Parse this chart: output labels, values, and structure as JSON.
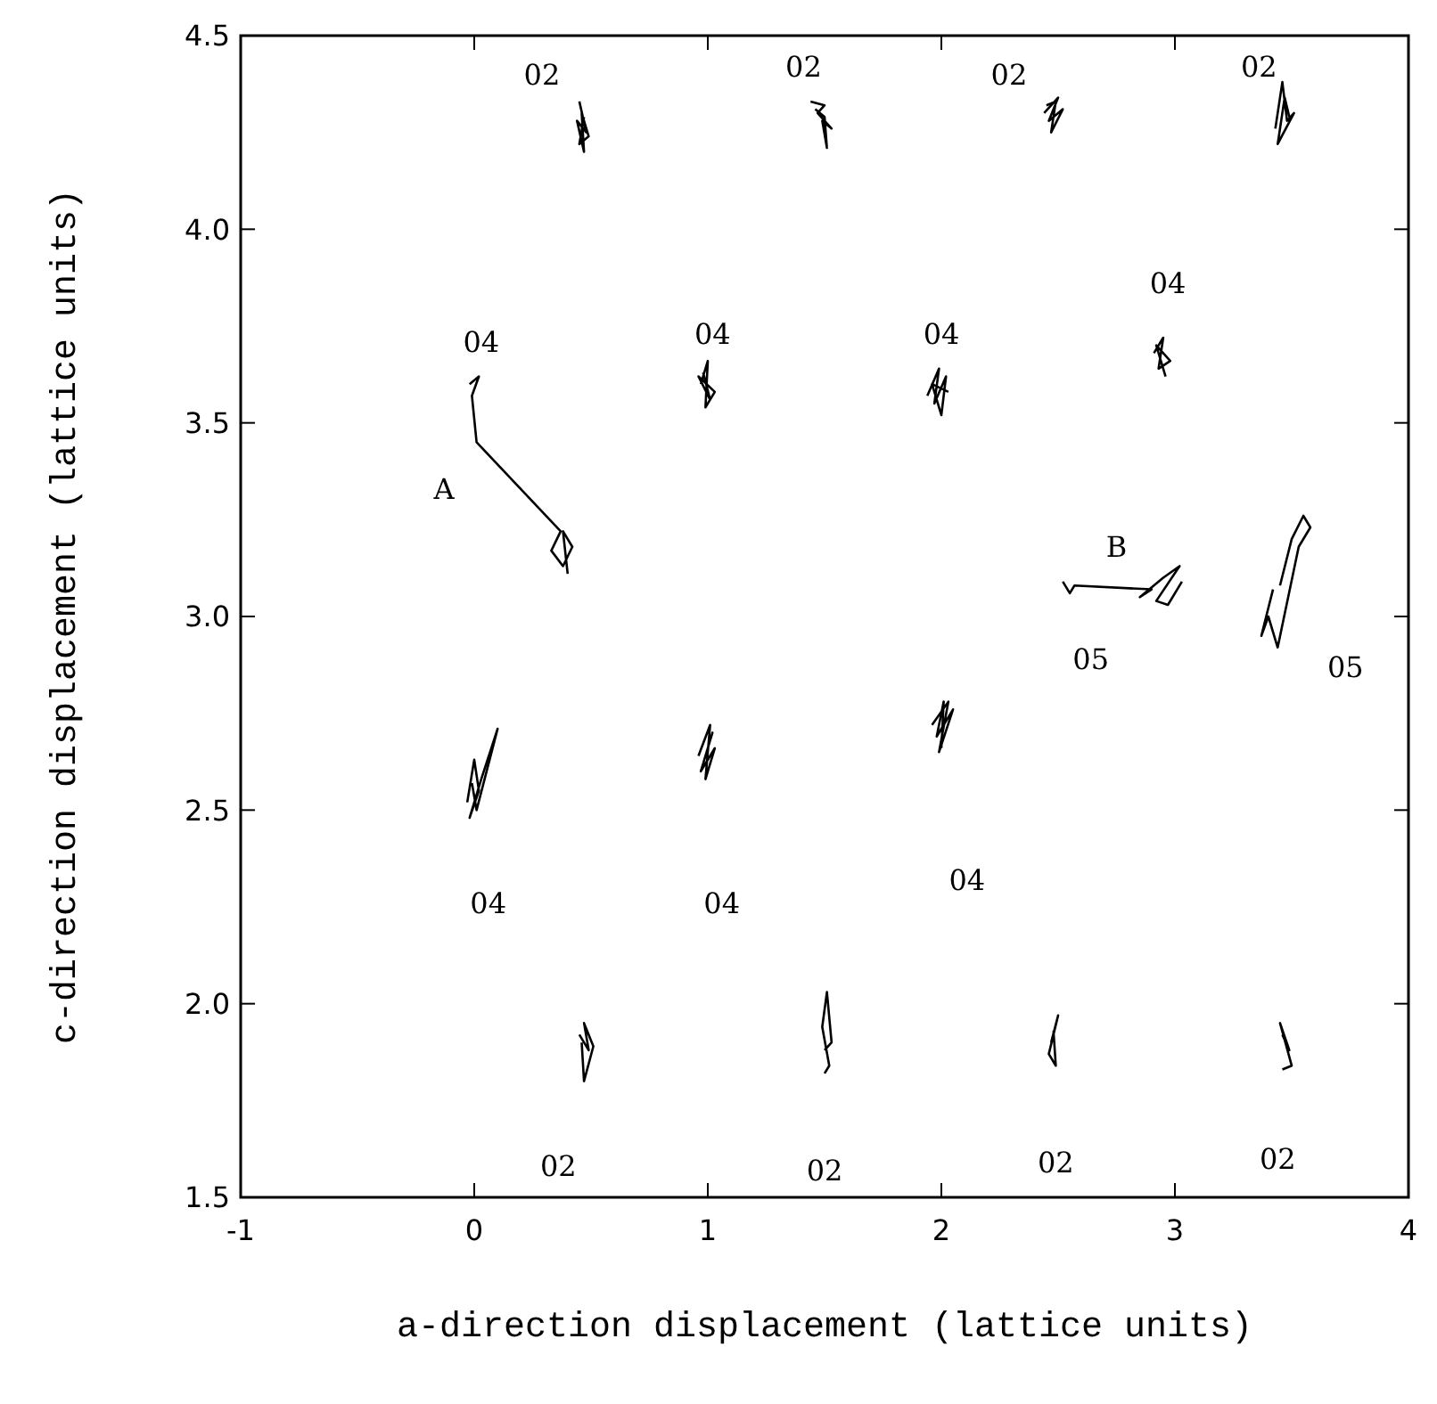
{
  "chart_data": {
    "type": "line",
    "xlabel": "a-direction displacement (lattice units)",
    "ylabel": "c-direction displacement (lattice units)",
    "xlim": [
      -1,
      4
    ],
    "ylim": [
      1.5,
      4.5
    ],
    "xticks": [
      -1,
      0,
      1,
      2,
      3,
      4
    ],
    "yticks": [
      {
        "value": 1.5,
        "label": "1.5"
      },
      {
        "value": 2,
        "label": "2.0"
      },
      {
        "value": 2.5,
        "label": "2.5"
      },
      {
        "value": 3,
        "label": "3.0"
      },
      {
        "value": 3.5,
        "label": "3.5"
      },
      {
        "value": 4,
        "label": "4.0"
      },
      {
        "value": 4.5,
        "label": "4.5"
      }
    ],
    "series": [
      {
        "color": "#000000",
        "x": [
          0.45,
          0.48,
          0.44,
          0.47,
          0.46,
          0.49,
          0.45,
          0.47
        ],
        "values": [
          4.33,
          4.25,
          4.28,
          4.2,
          4.3,
          4.24,
          4.22,
          4.29
        ]
      },
      {
        "color": "#000000",
        "x": [
          1.44,
          1.5,
          1.47,
          1.53,
          1.49,
          1.51,
          1.5,
          1.46
        ],
        "values": [
          4.33,
          4.32,
          4.3,
          4.26,
          4.28,
          4.21,
          4.29,
          4.31
        ]
      },
      {
        "color": "#000000",
        "x": [
          2.44,
          2.5,
          2.46,
          2.52,
          2.47,
          2.49,
          2.45
        ],
        "values": [
          4.3,
          4.34,
          4.28,
          4.31,
          4.25,
          4.33,
          4.32
        ]
      },
      {
        "color": "#000000",
        "x": [
          3.43,
          3.46,
          3.48,
          3.51,
          3.44,
          3.47,
          3.49
        ],
        "values": [
          4.26,
          4.38,
          4.28,
          4.3,
          4.22,
          4.34,
          4.29
        ]
      },
      {
        "color": "#000000",
        "x": [
          -0.02,
          0.02,
          -0.01,
          0.01,
          0.37,
          0.33,
          0.38,
          0.42,
          0.38,
          0.4
        ],
        "values": [
          3.6,
          3.62,
          3.57,
          3.45,
          3.22,
          3.17,
          3.13,
          3.18,
          3.22,
          3.11
        ]
      },
      {
        "color": "#000000",
        "x": [
          0.97,
          1,
          0.99,
          1.03,
          0.96,
          1.01,
          0.98
        ],
        "values": [
          3.6,
          3.66,
          3.54,
          3.58,
          3.62,
          3.56,
          3.63
        ]
      },
      {
        "color": "#000000",
        "x": [
          1.94,
          1.99,
          1.97,
          2.02,
          2,
          1.96,
          2.03
        ],
        "values": [
          3.57,
          3.64,
          3.55,
          3.62,
          3.52,
          3.6,
          3.58
        ]
      },
      {
        "color": "#000000",
        "x": [
          2.91,
          2.95,
          2.93,
          2.98,
          2.92,
          2.96
        ],
        "values": [
          3.68,
          3.72,
          3.64,
          3.66,
          3.7,
          3.62
        ]
      },
      {
        "color": "#000000",
        "x": [
          2.52,
          2.55,
          2.57,
          2.9,
          2.85,
          2.95,
          3.02,
          2.92,
          2.97,
          3.03
        ],
        "values": [
          3.09,
          3.06,
          3.08,
          3.07,
          3.05,
          3.1,
          3.13,
          3.04,
          3.03,
          3.09
        ]
      },
      {
        "color": "#000000",
        "x": [
          3.42,
          3.37,
          3.4,
          3.44,
          3.53,
          3.58,
          3.55,
          3.5,
          3.45
        ],
        "values": [
          3.07,
          2.95,
          3,
          2.92,
          3.18,
          3.23,
          3.26,
          3.2,
          3.08
        ]
      },
      {
        "color": "#000000",
        "x": [
          -0.03,
          0,
          0.02,
          -0.02,
          0.03,
          0.1,
          0.01,
          -0.01
        ],
        "values": [
          2.52,
          2.63,
          2.55,
          2.48,
          2.58,
          2.71,
          2.5,
          2.57
        ]
      },
      {
        "color": "#000000",
        "x": [
          0.98,
          1.02,
          0.97,
          1.03,
          0.99,
          1.01,
          0.96
        ],
        "values": [
          2.62,
          2.7,
          2.6,
          2.66,
          2.58,
          2.72,
          2.64
        ]
      },
      {
        "color": "#000000",
        "x": [
          1.96,
          2.03,
          1.99,
          2.05,
          1.98,
          2.01,
          2
        ],
        "values": [
          2.72,
          2.78,
          2.65,
          2.76,
          2.69,
          2.78,
          2.66
        ]
      },
      {
        "color": "#000000",
        "x": [
          0.45,
          0.49,
          0.47,
          0.51,
          0.47,
          0.46
        ],
        "values": [
          1.92,
          1.88,
          1.95,
          1.89,
          1.8,
          1.9
        ]
      },
      {
        "color": "#000000",
        "x": [
          1.5,
          1.53,
          1.51,
          1.49,
          1.52,
          1.5
        ],
        "values": [
          1.88,
          1.9,
          2.03,
          1.94,
          1.84,
          1.82
        ]
      },
      {
        "color": "#000000",
        "x": [
          2.47,
          2.5,
          2.46,
          2.49,
          2.48
        ],
        "values": [
          1.9,
          1.97,
          1.87,
          1.84,
          1.93
        ]
      },
      {
        "color": "#000000",
        "x": [
          3.46,
          3.49,
          3.45,
          3.5,
          3.46
        ],
        "values": [
          1.92,
          1.88,
          1.95,
          1.84,
          1.83
        ]
      }
    ],
    "annotations": [
      "02",
      "02",
      "02",
      "02",
      "04",
      "04",
      "04",
      "04",
      "A",
      "B",
      "05",
      "05",
      "04",
      "04",
      "04",
      "02",
      "02",
      "02",
      "02"
    ]
  }
}
